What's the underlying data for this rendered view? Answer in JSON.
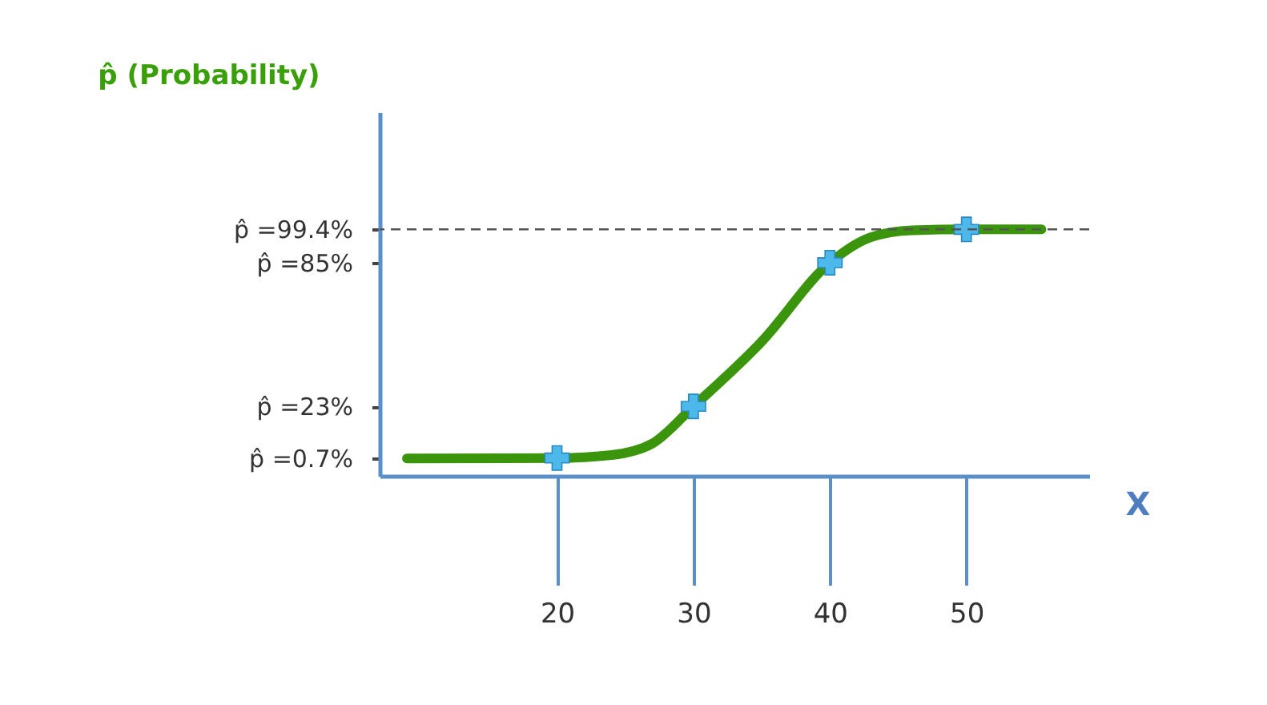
{
  "chart_data": {
    "type": "line",
    "xlabel": "X",
    "ylabel": "p̂ (Probability)",
    "series": [
      {
        "color": "#3a940c",
        "x": [
          9,
          20,
          24,
          27,
          30,
          35,
          40,
          43,
          46,
          50,
          55.5
        ],
        "values": [
          0.5,
          0.7,
          2,
          7,
          23,
          51,
          85,
          96,
          99,
          99.4,
          99.4
        ]
      },
      {
        "type": "scatter",
        "color": "#4db8ea",
        "marker": "cross",
        "x": [
          20,
          30,
          40,
          50
        ],
        "values": [
          0.7,
          23,
          85,
          99.4
        ]
      }
    ],
    "xlim": [
      7,
      59
    ],
    "ylim": [
      -7,
      150
    ],
    "xticks": [
      20,
      30,
      40,
      50
    ],
    "yticks": [
      {
        "value": 0.7,
        "label": "p̂ =0.7%"
      },
      {
        "value": 23,
        "label": "p̂ =23%"
      },
      {
        "value": 85,
        "label": "p̂ =85%"
      },
      {
        "value": 99.4,
        "label": "p̂ =99.4%"
      }
    ],
    "ref_lines": [
      {
        "axis": "y",
        "value": 99.4,
        "color": "#555555",
        "line_style": "dashed"
      }
    ],
    "grid": false
  }
}
